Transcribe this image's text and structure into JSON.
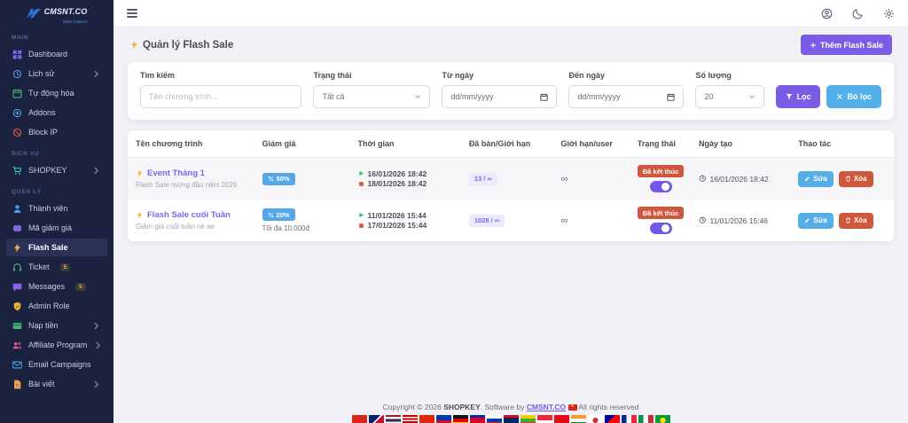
{
  "sidebar": {
    "logo": {
      "brand": "CMSNT.CO",
      "tagline": "WEB Solution"
    },
    "sections": [
      {
        "label": "MAIN",
        "items": [
          {
            "icon": "grid",
            "color": "#7367f0",
            "label": "Dashboard"
          },
          {
            "icon": "clock",
            "color": "#4a9fe8",
            "label": "Lịch sử",
            "chevron": true
          },
          {
            "icon": "calendar",
            "color": "#45b876",
            "label": "Tự động hóa"
          },
          {
            "icon": "plus-circle",
            "color": "#4a9fe8",
            "label": "Addons"
          },
          {
            "icon": "ban",
            "color": "#e0564a",
            "label": "Block IP"
          }
        ]
      },
      {
        "label": "DỊCH VỤ",
        "items": [
          {
            "icon": "cart",
            "color": "#3fc6d4",
            "label": "SHOPKEY",
            "chevron": true
          }
        ]
      },
      {
        "label": "QUẢN LÝ",
        "items": [
          {
            "icon": "user",
            "color": "#4a9fe8",
            "label": "Thành viên"
          },
          {
            "icon": "ticket",
            "color": "#8a63e8",
            "label": "Mã giảm giá"
          },
          {
            "icon": "bolt",
            "color": "#f5b544",
            "label": "Flash Sale",
            "active": true
          },
          {
            "icon": "headset",
            "color": "#3cb87a",
            "label": "Ticket",
            "badge": "5"
          },
          {
            "icon": "chat",
            "color": "#8a63e8",
            "label": "Messages",
            "badge": "5"
          },
          {
            "icon": "shield",
            "color": "#f0b429",
            "label": "Admin Role"
          },
          {
            "icon": "card",
            "color": "#3cb87a",
            "label": "Nạp tiền",
            "chevron": true
          },
          {
            "icon": "users",
            "color": "#e85c8a",
            "label": "Affiliate Program",
            "chevron": true
          },
          {
            "icon": "mail",
            "color": "#4a9fe8",
            "label": "Email Campaigns"
          },
          {
            "icon": "doc",
            "color": "#f0a35c",
            "label": "Bài viết",
            "chevron": true
          }
        ]
      }
    ]
  },
  "page": {
    "title": "Quản lý Flash Sale",
    "add_button": "Thêm Flash Sale"
  },
  "filters": {
    "search": {
      "label": "Tìm kiếm",
      "placeholder": "Tên chương trình..."
    },
    "status": {
      "label": "Trạng thái",
      "value": "Tất cả"
    },
    "from_date": {
      "label": "Từ ngày",
      "placeholder": "dd/mm/yyyy"
    },
    "to_date": {
      "label": "Đến ngày",
      "placeholder": "dd/mm/yyyy"
    },
    "limit": {
      "label": "Số lượng",
      "value": "20"
    },
    "filter_button": "Lọc",
    "clear_button": "Bỏ lọc"
  },
  "table": {
    "headers": [
      "Tên chương trình",
      "Giảm giá",
      "Thời gian",
      "Đã bán/Giới hạn",
      "Giới hạn/user",
      "Trạng thái",
      "Ngày tạo",
      "Thao tác"
    ],
    "rows": [
      {
        "name": "Event Tháng 1",
        "description": "Flash Sale mừng đầu năm 2026",
        "discount": "50%",
        "discount_note": "",
        "start": "16/01/2026 18:42",
        "end": "18/01/2026 18:42",
        "sold": "13 / ∞",
        "user_limit": "∞",
        "status": "Đã kết thúc",
        "toggle_on": true,
        "created": "16/01/2026 18:42",
        "edit_button": "Sửa",
        "delete_button": "Xóa"
      },
      {
        "name": "Flash Sale cuối Tuần",
        "description": "Giảm giá cuối tuần nè ae",
        "discount": "20%",
        "discount_note": "Tối đa 10.000đ",
        "start": "11/01/2026 15:44",
        "end": "17/01/2026 15:44",
        "sold": "1028 / ∞",
        "user_limit": "∞",
        "status": "Đã kết thúc",
        "toggle_on": true,
        "created": "11/01/2026 15:46",
        "edit_button": "Sửa",
        "delete_button": "Xóa"
      }
    ]
  },
  "footer": {
    "copyright_prefix": "Copyright © 2026 ",
    "brand": "SHOPKEY",
    "middle": ". Software by ",
    "link": "CMSNT.CO",
    "suffix": " All rights reserved",
    "flags": [
      "vn",
      "gb",
      "th",
      "my",
      "cn",
      "ph",
      "de",
      "kh",
      "ru",
      "la",
      "mm",
      "sg",
      "tr",
      "in",
      "kr",
      "tw",
      "fr",
      "it",
      "br"
    ]
  },
  "colors": {
    "accent_purple": "#7b5ce5",
    "info_blue": "#54a8e8",
    "danger_orange": "#d0563c",
    "sidebar_bg": "#1a2240"
  }
}
